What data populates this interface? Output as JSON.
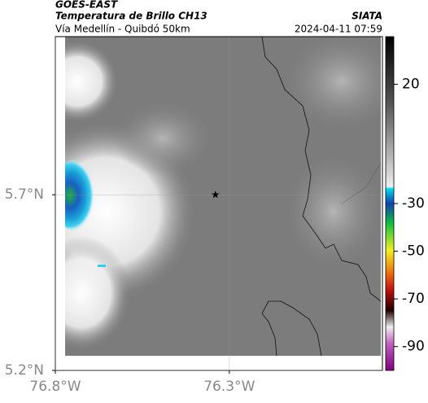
{
  "chart_data": {
    "type": "map",
    "source": "GOES-EAST",
    "title": "Temperatura de Brillo CH13",
    "credit": "SIATA",
    "subtitle": "Vía Medellín - Quibdó 50km",
    "timestamp": "2024-04-11 07:59",
    "xlim": [
      -76.8,
      -75.86
    ],
    "ylim": [
      5.2,
      6.15
    ],
    "xticks": [
      {
        "value": -76.8,
        "label": "76.8°W"
      },
      {
        "value": -76.3,
        "label": "76.3°W"
      }
    ],
    "yticks": [
      {
        "value": 5.2,
        "label": "5.2°N"
      },
      {
        "value": 5.7,
        "label": "5.7°N"
      }
    ],
    "colorbar_lim": [
      -100,
      40
    ],
    "colorbar_ticks": [
      20,
      -30,
      -50,
      -70,
      -90
    ],
    "marker": {
      "lon": -76.34,
      "lat": 5.7
    }
  }
}
